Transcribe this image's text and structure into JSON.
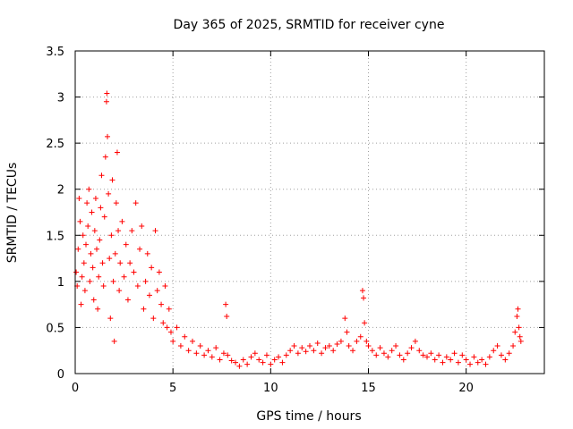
{
  "chart_data": {
    "type": "scatter",
    "title": "Day 365 of 2025, SRMTID for receiver cyne",
    "xlabel": "GPS time / hours",
    "ylabel": "SRMTID / TECUs",
    "xlim": [
      0,
      24
    ],
    "ylim": [
      0,
      3.5
    ],
    "grid": true,
    "marker": "+",
    "x_ticks": [
      0,
      5,
      10,
      15,
      20
    ],
    "x_tick_labels": [
      "0",
      "5",
      "10",
      "15",
      "20"
    ],
    "y_ticks": [
      0,
      0.5,
      1,
      1.5,
      2,
      2.5,
      3,
      3.5
    ],
    "y_tick_labels": [
      "0",
      "0.5",
      "1",
      "1.5",
      "2",
      "2.5",
      "3",
      "3.5"
    ],
    "series": [
      {
        "name": "SRMTID",
        "color": "#ff0000",
        "points": [
          [
            0.05,
            1.1
          ],
          [
            0.1,
            0.95
          ],
          [
            0.15,
            1.35
          ],
          [
            0.2,
            1.9
          ],
          [
            0.25,
            1.65
          ],
          [
            0.3,
            0.75
          ],
          [
            0.35,
            1.05
          ],
          [
            0.4,
            1.5
          ],
          [
            0.45,
            1.2
          ],
          [
            0.5,
            0.9
          ],
          [
            0.55,
            1.4
          ],
          [
            0.6,
            1.85
          ],
          [
            0.65,
            1.6
          ],
          [
            0.7,
            2.0
          ],
          [
            0.75,
            1.0
          ],
          [
            0.8,
            1.3
          ],
          [
            0.85,
            1.75
          ],
          [
            0.9,
            1.15
          ],
          [
            0.95,
            0.8
          ],
          [
            1.0,
            1.55
          ],
          [
            1.05,
            1.9
          ],
          [
            1.1,
            1.35
          ],
          [
            1.15,
            0.7
          ],
          [
            1.2,
            1.05
          ],
          [
            1.25,
            1.45
          ],
          [
            1.3,
            1.8
          ],
          [
            1.35,
            2.15
          ],
          [
            1.4,
            1.2
          ],
          [
            1.45,
            0.95
          ],
          [
            1.5,
            1.7
          ],
          [
            1.55,
            2.35
          ],
          [
            1.6,
            2.95
          ],
          [
            1.62,
            3.04
          ],
          [
            1.65,
            2.57
          ],
          [
            1.7,
            1.95
          ],
          [
            1.75,
            1.25
          ],
          [
            1.8,
            0.6
          ],
          [
            1.85,
            1.5
          ],
          [
            1.9,
            2.1
          ],
          [
            1.95,
            1.0
          ],
          [
            2.0,
            0.35
          ],
          [
            2.05,
            1.3
          ],
          [
            2.1,
            1.85
          ],
          [
            2.15,
            2.4
          ],
          [
            2.2,
            1.55
          ],
          [
            2.25,
            0.9
          ],
          [
            2.3,
            1.2
          ],
          [
            2.4,
            1.65
          ],
          [
            2.5,
            1.05
          ],
          [
            2.6,
            1.4
          ],
          [
            2.7,
            0.8
          ],
          [
            2.8,
            1.2
          ],
          [
            2.9,
            1.55
          ],
          [
            3.0,
            1.1
          ],
          [
            3.1,
            1.85
          ],
          [
            3.2,
            0.95
          ],
          [
            3.3,
            1.35
          ],
          [
            3.4,
            1.6
          ],
          [
            3.5,
            0.7
          ],
          [
            3.6,
            1.0
          ],
          [
            3.7,
            1.3
          ],
          [
            3.8,
            0.85
          ],
          [
            3.9,
            1.15
          ],
          [
            4.0,
            0.6
          ],
          [
            4.1,
            1.55
          ],
          [
            4.2,
            0.9
          ],
          [
            4.3,
            1.1
          ],
          [
            4.4,
            0.75
          ],
          [
            4.5,
            0.55
          ],
          [
            4.6,
            0.95
          ],
          [
            4.7,
            0.5
          ],
          [
            4.8,
            0.7
          ],
          [
            4.9,
            0.45
          ],
          [
            5.0,
            0.35
          ],
          [
            5.2,
            0.5
          ],
          [
            5.4,
            0.3
          ],
          [
            5.6,
            0.4
          ],
          [
            5.8,
            0.25
          ],
          [
            6.0,
            0.35
          ],
          [
            6.2,
            0.22
          ],
          [
            6.4,
            0.3
          ],
          [
            6.6,
            0.2
          ],
          [
            6.8,
            0.25
          ],
          [
            7.0,
            0.18
          ],
          [
            7.2,
            0.28
          ],
          [
            7.4,
            0.15
          ],
          [
            7.6,
            0.22
          ],
          [
            7.7,
            0.75
          ],
          [
            7.75,
            0.62
          ],
          [
            7.8,
            0.2
          ],
          [
            8.0,
            0.14
          ],
          [
            8.2,
            0.12
          ],
          [
            8.4,
            0.08
          ],
          [
            8.6,
            0.15
          ],
          [
            8.8,
            0.1
          ],
          [
            9.0,
            0.18
          ],
          [
            9.2,
            0.22
          ],
          [
            9.4,
            0.15
          ],
          [
            9.6,
            0.12
          ],
          [
            9.8,
            0.2
          ],
          [
            10.0,
            0.1
          ],
          [
            10.2,
            0.15
          ],
          [
            10.4,
            0.18
          ],
          [
            10.6,
            0.12
          ],
          [
            10.8,
            0.2
          ],
          [
            11.0,
            0.25
          ],
          [
            11.2,
            0.3
          ],
          [
            11.4,
            0.22
          ],
          [
            11.6,
            0.28
          ],
          [
            11.8,
            0.24
          ],
          [
            12.0,
            0.3
          ],
          [
            12.2,
            0.25
          ],
          [
            12.4,
            0.33
          ],
          [
            12.6,
            0.22
          ],
          [
            12.8,
            0.28
          ],
          [
            13.0,
            0.3
          ],
          [
            13.2,
            0.25
          ],
          [
            13.4,
            0.32
          ],
          [
            13.6,
            0.35
          ],
          [
            13.8,
            0.6
          ],
          [
            13.9,
            0.45
          ],
          [
            14.0,
            0.3
          ],
          [
            14.2,
            0.25
          ],
          [
            14.4,
            0.35
          ],
          [
            14.6,
            0.4
          ],
          [
            14.7,
            0.9
          ],
          [
            14.75,
            0.82
          ],
          [
            14.8,
            0.55
          ],
          [
            14.9,
            0.35
          ],
          [
            15.0,
            0.3
          ],
          [
            15.2,
            0.25
          ],
          [
            15.4,
            0.2
          ],
          [
            15.6,
            0.28
          ],
          [
            15.8,
            0.22
          ],
          [
            16.0,
            0.18
          ],
          [
            16.2,
            0.25
          ],
          [
            16.4,
            0.3
          ],
          [
            16.6,
            0.2
          ],
          [
            16.8,
            0.15
          ],
          [
            17.0,
            0.22
          ],
          [
            17.2,
            0.28
          ],
          [
            17.4,
            0.35
          ],
          [
            17.6,
            0.25
          ],
          [
            17.8,
            0.2
          ],
          [
            18.0,
            0.18
          ],
          [
            18.2,
            0.22
          ],
          [
            18.4,
            0.15
          ],
          [
            18.6,
            0.2
          ],
          [
            18.8,
            0.12
          ],
          [
            19.0,
            0.18
          ],
          [
            19.2,
            0.15
          ],
          [
            19.4,
            0.22
          ],
          [
            19.6,
            0.12
          ],
          [
            19.8,
            0.2
          ],
          [
            20.0,
            0.15
          ],
          [
            20.2,
            0.1
          ],
          [
            20.4,
            0.18
          ],
          [
            20.6,
            0.12
          ],
          [
            20.8,
            0.15
          ],
          [
            21.0,
            0.1
          ],
          [
            21.2,
            0.18
          ],
          [
            21.4,
            0.25
          ],
          [
            21.6,
            0.3
          ],
          [
            21.8,
            0.2
          ],
          [
            22.0,
            0.15
          ],
          [
            22.2,
            0.22
          ],
          [
            22.4,
            0.3
          ],
          [
            22.5,
            0.45
          ],
          [
            22.6,
            0.62
          ],
          [
            22.65,
            0.7
          ],
          [
            22.7,
            0.5
          ],
          [
            22.75,
            0.4
          ],
          [
            22.8,
            0.35
          ]
        ]
      }
    ]
  }
}
